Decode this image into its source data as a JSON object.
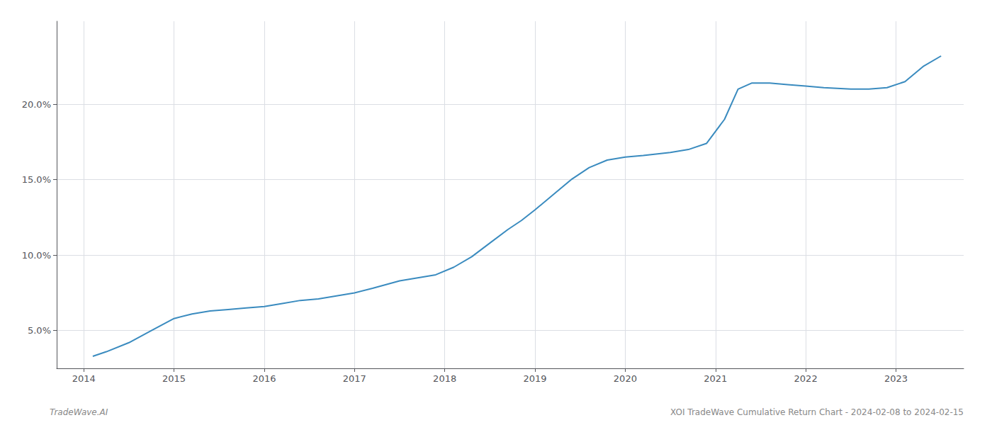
{
  "chart_data": {
    "type": "line",
    "x": [
      2014.1,
      2014.25,
      2014.5,
      2014.75,
      2015.0,
      2015.2,
      2015.4,
      2015.6,
      2015.8,
      2016.0,
      2016.2,
      2016.4,
      2016.6,
      2016.8,
      2017.0,
      2017.2,
      2017.5,
      2017.7,
      2017.9,
      2018.1,
      2018.3,
      2018.5,
      2018.7,
      2018.85,
      2019.0,
      2019.2,
      2019.4,
      2019.6,
      2019.8,
      2020.0,
      2020.2,
      2020.5,
      2020.7,
      2020.9,
      2021.1,
      2021.25,
      2021.4,
      2021.6,
      2021.8,
      2022.0,
      2022.2,
      2022.5,
      2022.7,
      2022.9,
      2023.1,
      2023.3,
      2023.5
    ],
    "values": [
      3.3,
      3.6,
      4.2,
      5.0,
      5.8,
      6.1,
      6.3,
      6.4,
      6.5,
      6.6,
      6.8,
      7.0,
      7.1,
      7.3,
      7.5,
      7.8,
      8.3,
      8.5,
      8.7,
      9.2,
      9.9,
      10.8,
      11.7,
      12.3,
      13.0,
      14.0,
      15.0,
      15.8,
      16.3,
      16.5,
      16.6,
      16.8,
      17.0,
      17.4,
      19.0,
      21.0,
      21.4,
      21.4,
      21.3,
      21.2,
      21.1,
      21.0,
      21.0,
      21.1,
      21.5,
      22.5,
      23.2
    ],
    "color": "#3a8bbf",
    "xlim": [
      2013.7,
      2023.75
    ],
    "xticks": [
      2014,
      2015,
      2016,
      2017,
      2018,
      2019,
      2020,
      2021,
      2022,
      2023
    ],
    "ylim": [
      2.5,
      25.5
    ],
    "yticks": [
      {
        "value": 5.0,
        "label": "5.0%"
      },
      {
        "value": 10.0,
        "label": "10.0%"
      },
      {
        "value": 15.0,
        "label": "15.0%"
      },
      {
        "value": 20.0,
        "label": "20.0%"
      }
    ],
    "grid": true,
    "annotations": [
      "TradeWave.AI",
      "XOI TradeWave Cumulative Return Chart - 2024-02-08 to 2024-02-15"
    ]
  }
}
